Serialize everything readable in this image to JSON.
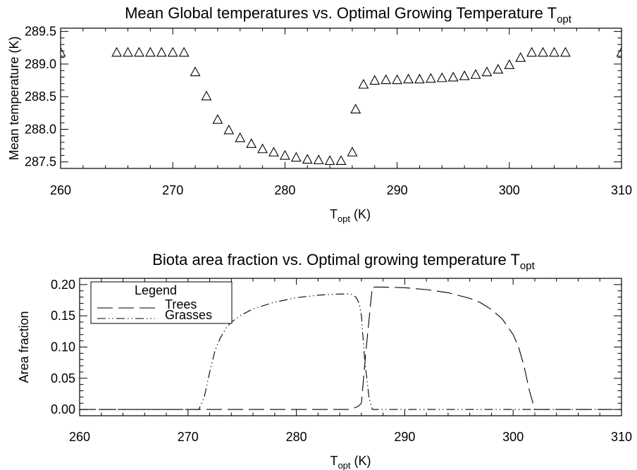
{
  "chart_data": [
    {
      "type": "scatter",
      "title": "Mean Global temperatures vs. Optimal Growing Temperature ",
      "title_sub": "opt",
      "title_prefix_symbol": "T",
      "xlabel": "",
      "xlabel_main": "T",
      "xlabel_sub": "opt",
      "xlabel_suffix": " (K)",
      "ylabel": "Mean temperature (K)",
      "xlim": [
        260,
        310
      ],
      "ylim": [
        287.4,
        289.55
      ],
      "xticks": [
        "260",
        "270",
        "280",
        "290",
        "300",
        "310"
      ],
      "yticks": [
        "287.5",
        "288.0",
        "288.5",
        "289.0",
        "289.5"
      ],
      "marker": "open-triangle",
      "grid": false,
      "x": [
        260,
        265,
        266,
        267,
        268,
        269,
        270,
        271,
        272,
        273,
        274,
        275,
        276,
        277,
        278,
        279,
        280,
        281,
        282,
        283,
        284,
        285,
        286,
        286.3,
        287,
        288,
        289,
        290,
        291,
        292,
        293,
        294,
        295,
        296,
        297,
        298,
        299,
        300,
        301,
        302,
        303,
        304,
        305,
        310
      ],
      "y": [
        289.18,
        289.18,
        289.18,
        289.18,
        289.18,
        289.18,
        289.18,
        289.18,
        288.88,
        288.51,
        288.15,
        287.99,
        287.87,
        287.78,
        287.7,
        287.65,
        287.6,
        287.57,
        287.54,
        287.53,
        287.52,
        287.52,
        287.65,
        288.31,
        288.69,
        288.75,
        288.76,
        288.76,
        288.77,
        288.77,
        288.78,
        288.79,
        288.8,
        288.82,
        288.84,
        288.88,
        288.92,
        288.99,
        289.1,
        289.18,
        289.18,
        289.18,
        289.18,
        289.18
      ]
    },
    {
      "type": "line",
      "title": "Biota area fraction vs. Optimal growing temperature ",
      "title_prefix_symbol": "T",
      "title_sub": "opt",
      "xlabel": "",
      "xlabel_main": "T",
      "xlabel_sub": "opt",
      "xlabel_suffix": " (K)",
      "ylabel": "Area fraction",
      "xlim": [
        260,
        310
      ],
      "ylim": [
        -0.01,
        0.21
      ],
      "xticks": [
        "260",
        "270",
        "280",
        "290",
        "300",
        "310"
      ],
      "yticks": [
        "0.00",
        "0.05",
        "0.10",
        "0.15",
        "0.20"
      ],
      "grid": false,
      "legend": {
        "title": "Legend",
        "placement": "top-left"
      },
      "series": [
        {
          "name": "Trees",
          "dash": "long-dash",
          "x": [
            260,
            285,
            285.7,
            286,
            286.4,
            287,
            288,
            290,
            292,
            294,
            296,
            297,
            298,
            299,
            300,
            300.5,
            301,
            301.5,
            302,
            303,
            310
          ],
          "y": [
            0.0,
            0.0,
            0.005,
            0.01,
            0.09,
            0.196,
            0.196,
            0.195,
            0.192,
            0.187,
            0.178,
            0.171,
            0.16,
            0.145,
            0.12,
            0.1,
            0.07,
            0.03,
            0.0,
            0.0,
            0.0
          ]
        },
        {
          "name": "Grasses",
          "dash": "dash-dot-dot",
          "x": [
            260,
            271,
            271.5,
            272,
            272.5,
            273,
            273.5,
            274,
            275,
            276,
            278,
            280,
            282,
            284,
            285,
            285.5,
            285.8,
            286,
            286.3,
            286.7,
            287,
            310
          ],
          "y": [
            0.0,
            0.0,
            0.02,
            0.06,
            0.095,
            0.115,
            0.13,
            0.14,
            0.152,
            0.161,
            0.172,
            0.179,
            0.183,
            0.185,
            0.185,
            0.18,
            0.17,
            0.15,
            0.08,
            0.02,
            0.0,
            0.0
          ]
        }
      ]
    }
  ]
}
